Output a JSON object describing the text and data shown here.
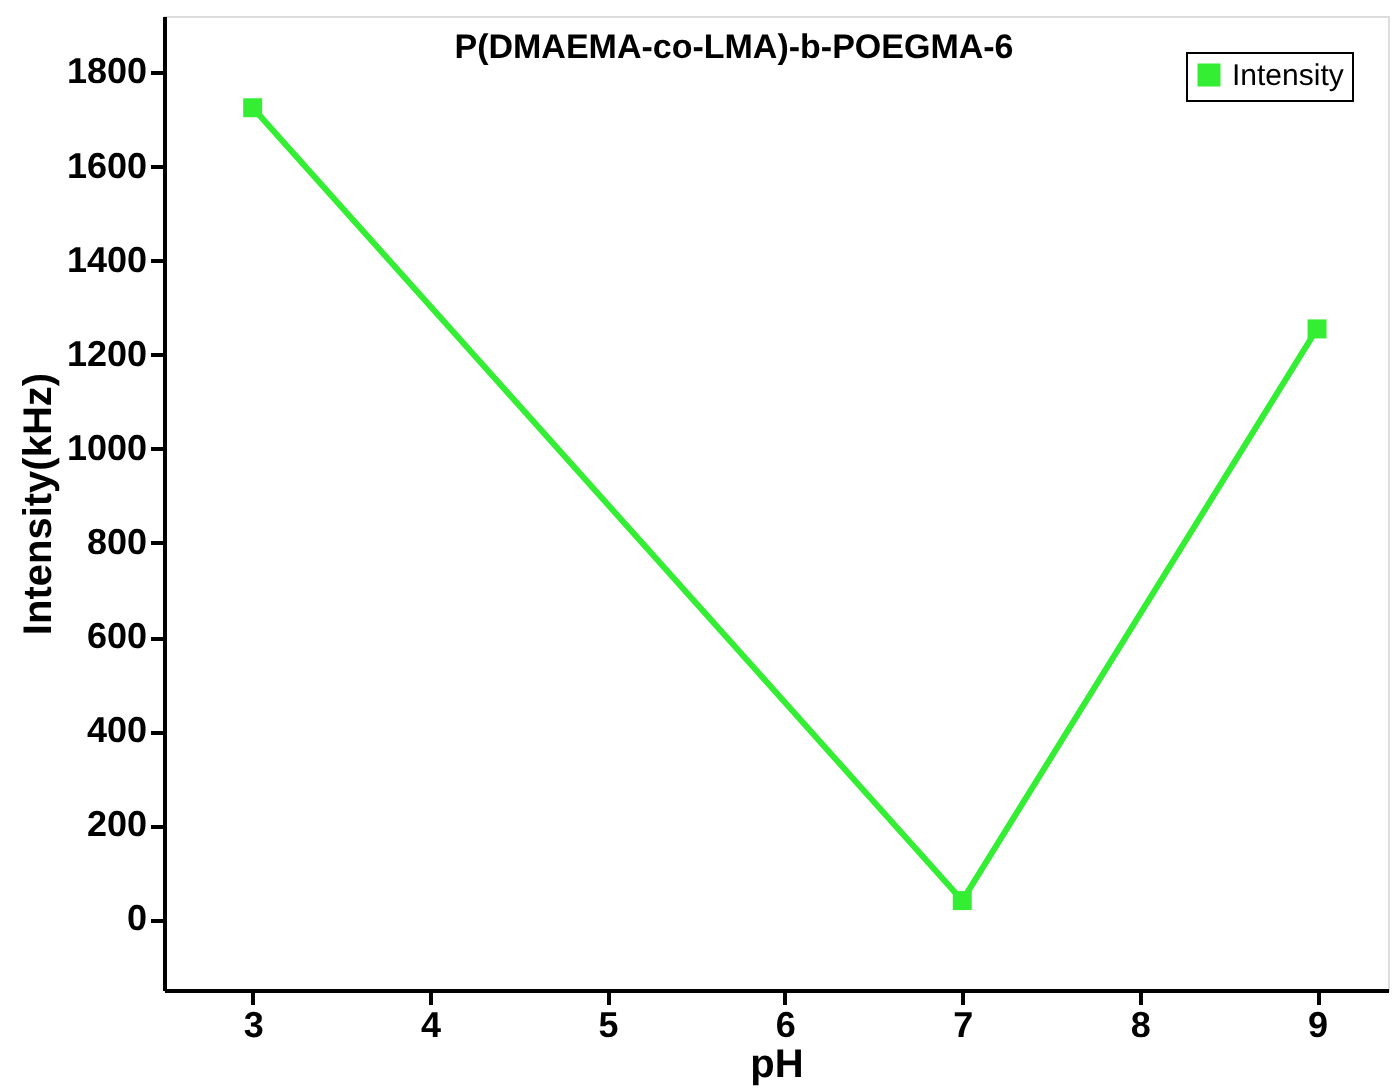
{
  "chart_data": {
    "type": "line",
    "title": "P(DMAEMA-co-LMA)-b-POEGMA-6",
    "xlabel": "pH",
    "ylabel": "Intensity(kHz)",
    "x": [
      3,
      7,
      9
    ],
    "series": [
      {
        "name": "Intensity",
        "color": "#33ee33",
        "values": [
          1725,
          40,
          1255
        ]
      }
    ],
    "xlim": [
      2.5,
      9.4
    ],
    "xticks": [
      3,
      4,
      5,
      6,
      7,
      8,
      9
    ],
    "ylim": [
      -150,
      1920
    ],
    "yticks": [
      0,
      200,
      400,
      600,
      800,
      1000,
      1200,
      1400,
      1600,
      1800
    ],
    "marker": "square",
    "line_style": "solid",
    "grid": false,
    "legend": "top right"
  }
}
